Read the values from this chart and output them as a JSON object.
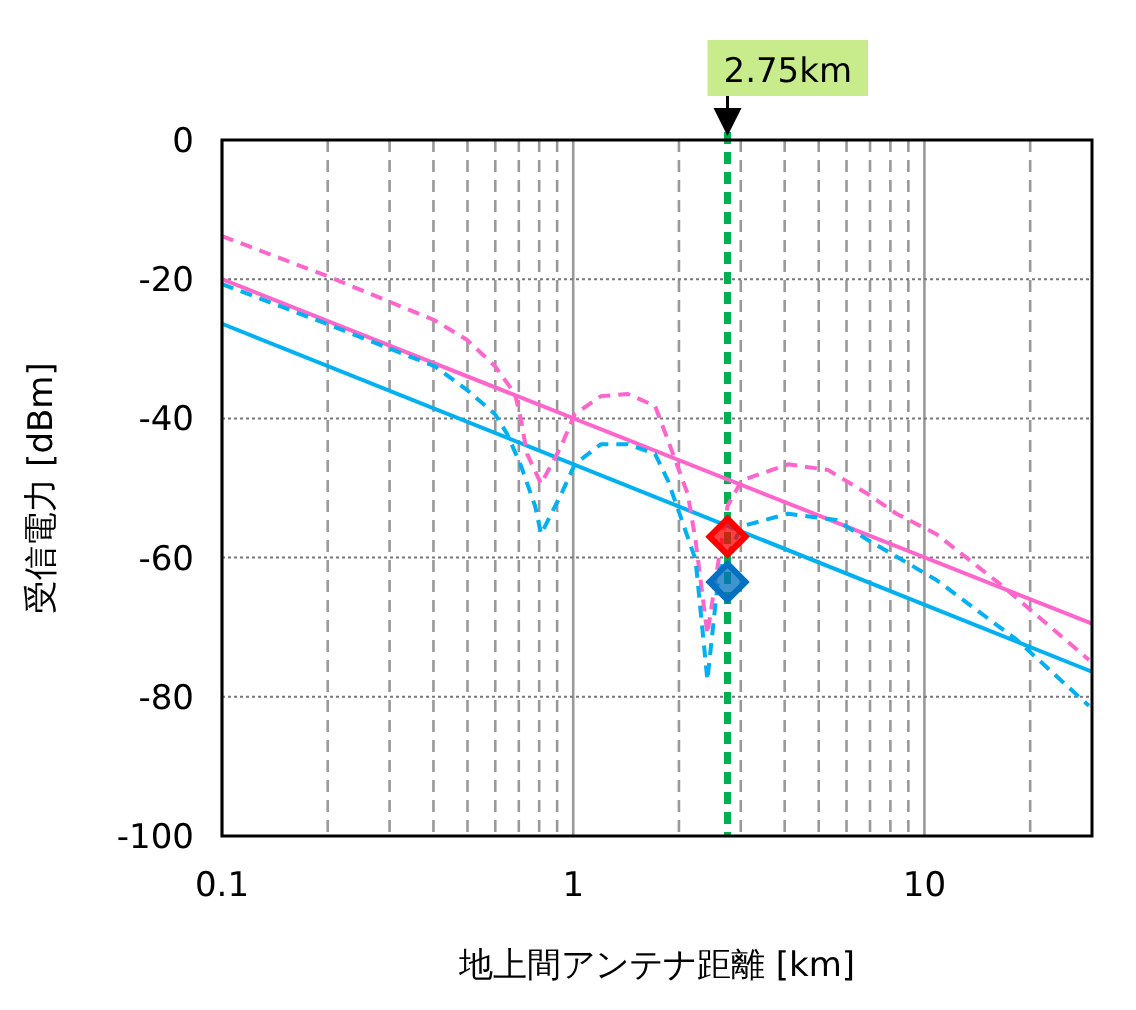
{
  "chart_data": {
    "type": "line",
    "xlabel": "地上間アンテナ距離 [km]",
    "ylabel": "受信電力 [dBm]",
    "log": "x",
    "grid": true,
    "xlim": [
      0.1,
      30
    ],
    "ylim": [
      -100,
      0
    ],
    "xticks": [
      0.1,
      {
        "value": 0.2,
        "label": null
      },
      {
        "value": 0.3,
        "label": null
      },
      {
        "value": 0.4,
        "label": null
      },
      {
        "value": 0.5,
        "label": null
      },
      {
        "value": 0.6,
        "label": null
      },
      {
        "value": 0.7,
        "label": null
      },
      {
        "value": 0.8,
        "label": null
      },
      {
        "value": 0.9,
        "label": null
      },
      1,
      {
        "value": 2,
        "label": null
      },
      {
        "value": 3,
        "label": null
      },
      {
        "value": 4,
        "label": null
      },
      {
        "value": 5,
        "label": null
      },
      {
        "value": 6,
        "label": null
      },
      {
        "value": 7,
        "label": null
      },
      {
        "value": 8,
        "label": null
      },
      {
        "value": 9,
        "label": null
      },
      10,
      {
        "value": 20,
        "label": null
      }
    ],
    "yticks": [
      -100,
      -80,
      -60,
      -40,
      -20,
      0
    ],
    "series": [
      {
        "color": "#ff66cc",
        "line_style": "solid",
        "x": [
          0.1,
          30
        ],
        "values": [
          -20,
          -69.5
        ]
      },
      {
        "color": "#00b0f0",
        "line_style": "solid",
        "x": [
          0.1,
          30
        ],
        "values": [
          -26.4,
          -76.4
        ]
      },
      {
        "color": "#ff66cc",
        "line_style": "dashed",
        "x": [
          0.1,
          0.198,
          0.403,
          0.498,
          0.599,
          0.683,
          0.71,
          0.739,
          0.81,
          0.924,
          1.01,
          1.2,
          1.43,
          1.71,
          1.86,
          2.12,
          2.23,
          2.41,
          2.6,
          2.75,
          3.02,
          4.09,
          5.31,
          6.92,
          8.33,
          10.8,
          16.7,
          29.4
        ],
        "values": [
          -13.8,
          -19.5,
          -25.9,
          -28.7,
          -32.5,
          -36.5,
          -40.2,
          -45.1,
          -49.4,
          -44,
          -39.4,
          -36.8,
          -36.5,
          -38.2,
          -43.1,
          -50.9,
          -57.5,
          -71,
          -60,
          -52.6,
          -48.9,
          -46.6,
          -47.4,
          -50.9,
          -53.7,
          -56.6,
          -64.1,
          -74.7
        ]
      },
      {
        "color": "#00b0f0",
        "line_style": "dashed",
        "x": [
          0.1,
          0.198,
          0.403,
          0.498,
          0.599,
          0.648,
          0.71,
          0.779,
          0.81,
          0.924,
          1.01,
          1.2,
          1.43,
          1.71,
          1.86,
          2.23,
          2.41,
          2.6,
          3.02,
          4.09,
          5.61,
          6.92,
          10.8,
          18.3,
          29.4
        ],
        "values": [
          -20.7,
          -26.4,
          -32.5,
          -35.9,
          -39.4,
          -42.2,
          -46.8,
          -52.6,
          -56.6,
          -50.9,
          -46.6,
          -43.7,
          -43.7,
          -45.1,
          -48.9,
          -60.3,
          -77.6,
          -62,
          -55.5,
          -53.7,
          -54.6,
          -57.5,
          -63.2,
          -71.8,
          -81.3
        ]
      },
      {
        "type": "scatter",
        "color": "#ff0000",
        "marker": "diamond",
        "x": [
          2.75
        ],
        "values": [
          -57
        ]
      },
      {
        "type": "scatter",
        "color": "#0070c0",
        "marker": "diamond",
        "x": [
          2.75
        ],
        "values": [
          -63.5
        ]
      }
    ],
    "ref_lines": [
      {
        "axis": "x",
        "value": 2.75,
        "label": "2.75km",
        "color": "#00b050",
        "line_style": "dashed"
      }
    ]
  }
}
